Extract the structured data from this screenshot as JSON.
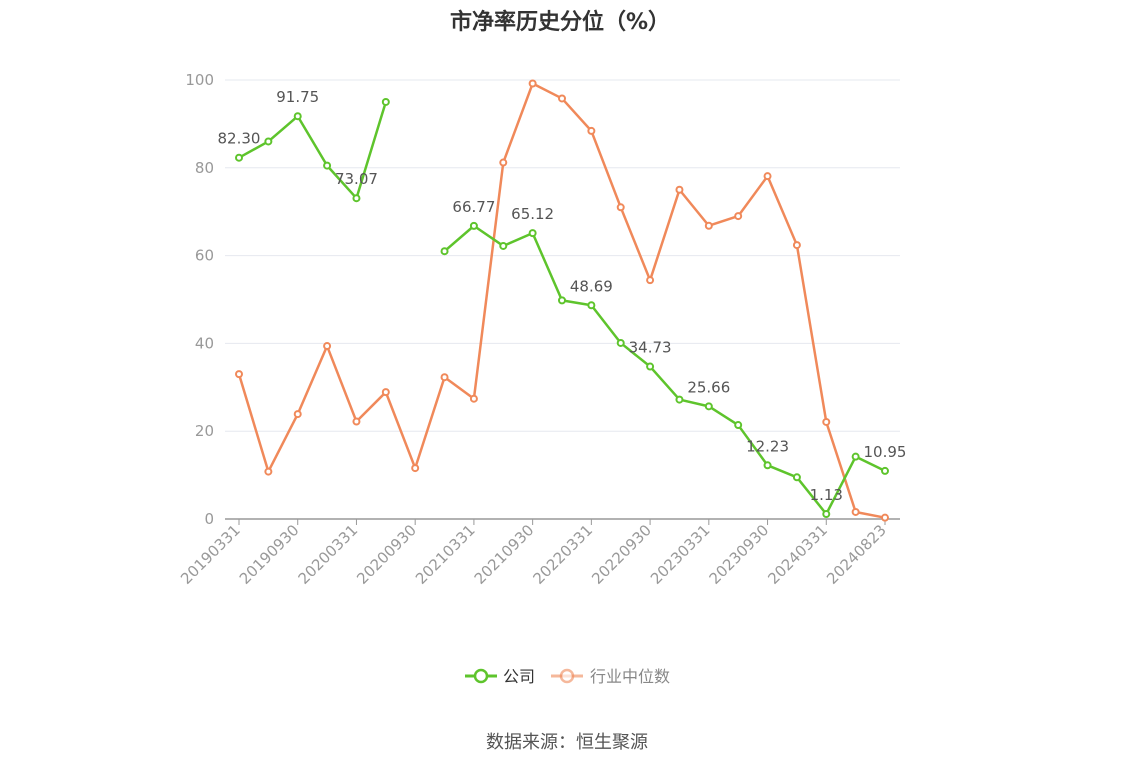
{
  "title": "市净率历史分位（%）",
  "source": "数据来源：恒生聚源",
  "colors": {
    "company": "#5ec42c",
    "industry": "#f0895a",
    "axis": "#999999",
    "grid": "#e6e8ef"
  },
  "chart_data": {
    "type": "line",
    "title": "市净率历史分位（%）",
    "ylim": [
      0,
      100
    ],
    "yticks": [
      0,
      20,
      40,
      60,
      80,
      100
    ],
    "grid": true,
    "legend_placement": "bottom-center",
    "x_tick_labels": [
      "20190331",
      "20190930",
      "20200331",
      "20200930",
      "20210331",
      "20210930",
      "20220331",
      "20220930",
      "20230331",
      "20230930",
      "20240331",
      "20240823"
    ],
    "x": [
      "20190331",
      "20190630",
      "20190930",
      "20191231",
      "20200331",
      "20200630",
      "20200930",
      "20201231",
      "20210331",
      "20210630",
      "20210930",
      "20211231",
      "20220331",
      "20220630",
      "20220930",
      "20221231",
      "20230331",
      "20230630",
      "20230930",
      "20231231",
      "20240331",
      "20240630",
      "20240823"
    ],
    "series": [
      {
        "name": "公司",
        "color": "#5ec42c",
        "values": [
          82.3,
          86.0,
          91.75,
          80.5,
          73.07,
          95.0,
          null,
          61.0,
          66.77,
          62.2,
          65.12,
          49.8,
          48.69,
          40.1,
          34.73,
          27.2,
          25.66,
          21.4,
          12.23,
          9.5,
          1.13,
          14.2,
          10.95
        ],
        "labels": [
          "82.30",
          null,
          "91.75",
          null,
          "73.07",
          null,
          null,
          null,
          "66.77",
          null,
          "65.12",
          null,
          "48.69",
          null,
          "34.73",
          null,
          "25.66",
          null,
          "12.23",
          null,
          "1.13",
          null,
          "10.95"
        ]
      },
      {
        "name": "行业中位数",
        "color": "#f0895a",
        "values": [
          33.0,
          10.8,
          23.9,
          39.4,
          22.2,
          28.9,
          11.6,
          32.3,
          27.4,
          81.2,
          99.2,
          95.8,
          88.4,
          71.0,
          54.4,
          75.0,
          66.8,
          69.0,
          78.1,
          62.4,
          22.1,
          1.6,
          0.3
        ]
      }
    ]
  }
}
